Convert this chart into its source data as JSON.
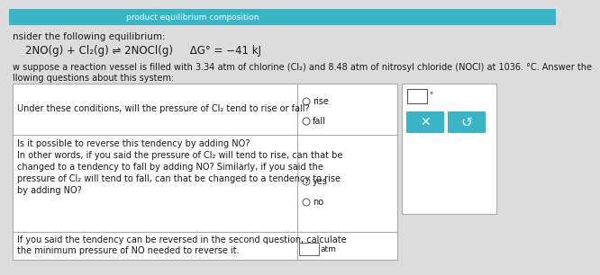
{
  "bg_top_color": "#3ab5c6",
  "bg_main_color": "#dcdcdc",
  "teal_color": "#3ab5c6",
  "white": "#ffffff",
  "text_color": "#1a1a1a",
  "border_color": "#aaaaaa",
  "header_text1": "nsider the following equilibrium:",
  "equation_left": "2NO(g) + Cl",
  "equation_mid": "2",
  "equation_right": "(g) ⇌ 2NOCl(g)",
  "equation_dg": "ΔG° = −41 kJ",
  "intro_text": "w suppose a reaction vessel is filled with 3.34 atm of chlorine (Cl₂) and 8.48 atm of nitrosyl chloride (NOCl) at 1036. °C. Answer the",
  "intro_text2": "llowing questions about this system:",
  "q1_text": "Under these conditions, will the pressure of Cl₂ tend to rise or fall?",
  "q1_opt1": "rise",
  "q1_opt2": "fall",
  "q2_text_line1": "Is it possible to reverse this tendency by adding NO?",
  "q2_text_line2": "In other words, if you said the pressure of Cl₂ will tend to rise, can that be",
  "q2_text_line3": "changed to a tendency to fall by adding NO? Similarly, if you said the",
  "q2_text_line4": "pressure of Cl₂ will tend to fall, can that be changed to a tendency to rise",
  "q2_text_line5": "by adding NO?",
  "q2_opt1": "yes",
  "q2_opt2": "no",
  "q3_text_line1": "If you said the tendency can be reversed in the second question, calculate",
  "q3_text_line2": "the minimum pressure of NO needed to reverse it.",
  "q3_unit": "atm",
  "top_bar_text": "product equilibrium composition"
}
